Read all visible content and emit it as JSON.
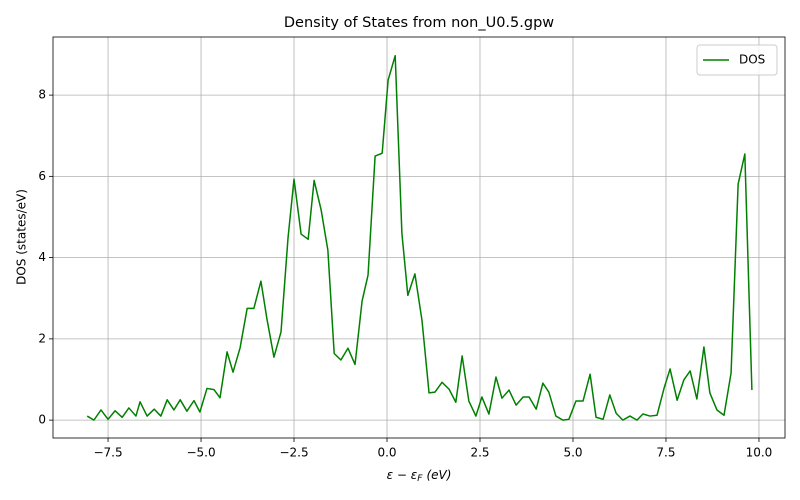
{
  "chart_data": {
    "type": "line",
    "title": "Density of States from non_U0.5.gpw",
    "xlabel": {
      "main": "ε − ε",
      "subscript": "F",
      "unit": "(eV)"
    },
    "ylabel": "DOS (states/eV)",
    "x": [
      -8.06,
      -7.88,
      -7.69,
      -7.5,
      -7.31,
      -7.12,
      -6.94,
      -6.75,
      -6.64,
      -6.45,
      -6.26,
      -6.08,
      -5.91,
      -5.73,
      -5.56,
      -5.38,
      -5.19,
      -5.03,
      -4.84,
      -4.65,
      -4.49,
      -4.3,
      -4.14,
      -3.95,
      -3.76,
      -3.58,
      -3.39,
      -3.23,
      -3.04,
      -2.85,
      -2.66,
      -2.5,
      -2.31,
      -2.12,
      -1.96,
      -1.77,
      -1.59,
      -1.42,
      -1.24,
      -1.05,
      -0.86,
      -0.67,
      -0.51,
      -0.32,
      -0.13,
      0.03,
      0.22,
      0.4,
      0.56,
      0.75,
      0.94,
      1.13,
      1.29,
      1.48,
      1.67,
      1.85,
      2.02,
      2.2,
      2.39,
      2.55,
      2.74,
      2.93,
      3.09,
      3.28,
      3.47,
      3.66,
      3.82,
      4.01,
      4.19,
      4.35,
      4.54,
      4.73,
      4.89,
      5.08,
      5.27,
      5.46,
      5.62,
      5.81,
      5.99,
      6.16,
      6.34,
      6.53,
      6.72,
      6.88,
      7.07,
      7.26,
      7.45,
      7.61,
      7.8,
      7.98,
      8.15,
      8.33,
      8.52,
      8.68,
      8.87,
      9.06,
      9.25,
      9.44,
      9.62,
      9.81
    ],
    "series": [
      {
        "name": "DOS",
        "color": "#008000",
        "values": [
          0.1,
          0.0,
          0.25,
          0.02,
          0.23,
          0.07,
          0.3,
          0.1,
          0.45,
          0.1,
          0.27,
          0.1,
          0.5,
          0.25,
          0.5,
          0.22,
          0.48,
          0.2,
          0.78,
          0.75,
          0.55,
          1.68,
          1.18,
          1.78,
          2.75,
          2.75,
          3.42,
          2.5,
          1.55,
          2.17,
          4.5,
          5.93,
          4.58,
          4.45,
          5.9,
          5.17,
          4.18,
          1.64,
          1.48,
          1.77,
          1.37,
          2.93,
          3.57,
          6.5,
          6.57,
          8.37,
          8.97,
          4.6,
          3.07,
          3.6,
          2.46,
          0.67,
          0.69,
          0.93,
          0.76,
          0.44,
          1.58,
          0.47,
          0.1,
          0.57,
          0.15,
          1.06,
          0.54,
          0.74,
          0.37,
          0.57,
          0.57,
          0.27,
          0.91,
          0.69,
          0.1,
          0.0,
          0.02,
          0.47,
          0.47,
          1.13,
          0.07,
          0.02,
          0.62,
          0.17,
          0.0,
          0.1,
          0.0,
          0.15,
          0.1,
          0.12,
          0.79,
          1.26,
          0.49,
          0.99,
          1.21,
          0.52,
          1.8,
          0.67,
          0.25,
          0.12,
          1.16,
          5.81,
          6.55,
          0.74
        ]
      }
    ],
    "xlim": [
      -8.98,
      10.7
    ],
    "ylim": [
      -0.44,
      9.43
    ],
    "xticks": [
      {
        "value": -7.5,
        "label": "−7.5"
      },
      {
        "value": -5,
        "label": "−5.0"
      },
      {
        "value": -2.5,
        "label": "−2.5"
      },
      {
        "value": 0,
        "label": "0.0"
      },
      {
        "value": 2.5,
        "label": "2.5"
      },
      {
        "value": 5,
        "label": "5.0"
      },
      {
        "value": 7.5,
        "label": "7.5"
      },
      {
        "value": 10,
        "label": "10.0"
      }
    ],
    "yticks": [
      0,
      2,
      4,
      6,
      8
    ],
    "grid": true,
    "legend": "upper right"
  }
}
